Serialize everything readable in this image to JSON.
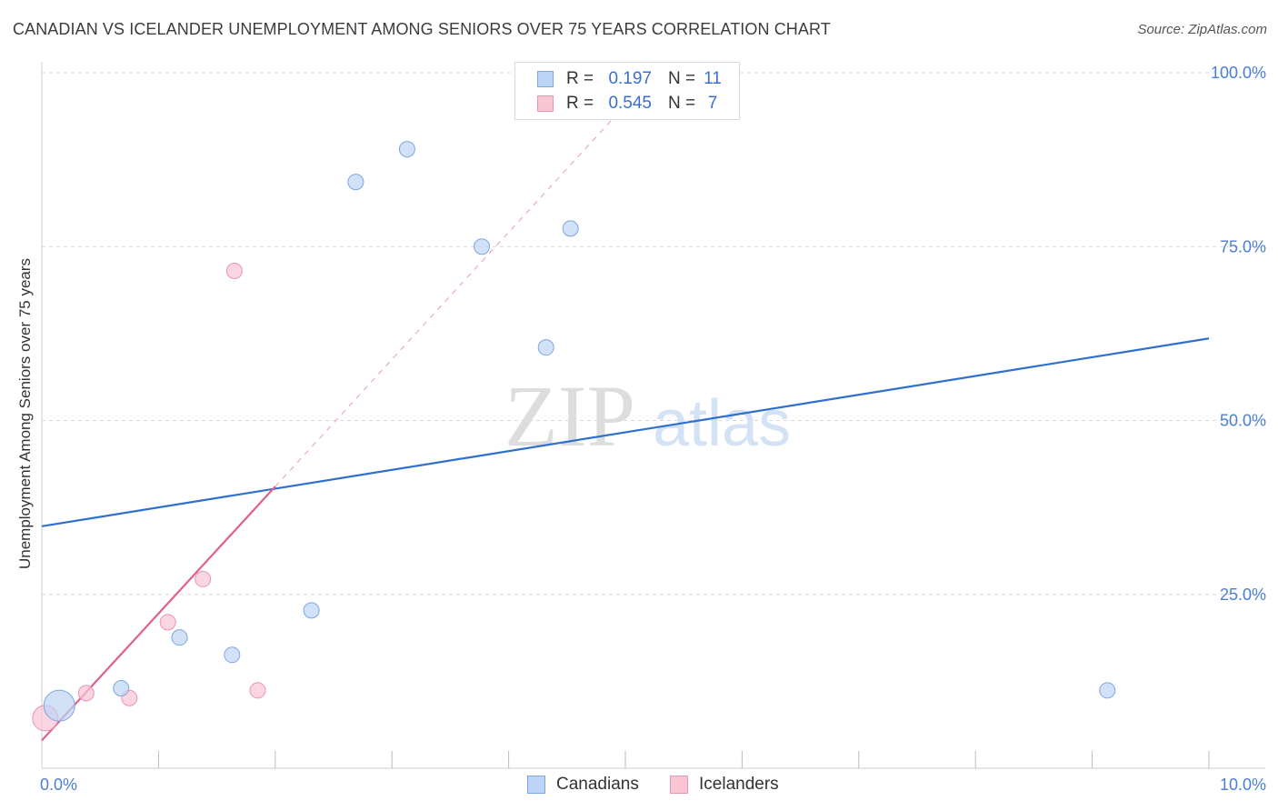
{
  "title": "CANADIAN VS ICELANDER UNEMPLOYMENT AMONG SENIORS OVER 75 YEARS CORRELATION CHART",
  "source": "Source: ZipAtlas.com",
  "watermark": {
    "zip": "ZIP",
    "atlas": "atlas"
  },
  "legend": {
    "rows": [
      {
        "r_label": "R =",
        "r_value": "0.197",
        "n_label": "N =",
        "n_value": "11"
      },
      {
        "r_label": "R =",
        "r_value": "0.545",
        "n_label": "N =",
        "n_value": "7"
      }
    ]
  },
  "bottom_legend": {
    "canadians": "Canadians",
    "icelanders": "Icelanders"
  },
  "colors": {
    "blue_fill": "#bcd4f5",
    "blue_stroke": "#7ea6e0",
    "blue_line": "#2f6fce",
    "pink_fill": "#f9c5d5",
    "pink_stroke": "#e895ae",
    "pink_line": "#e0608a",
    "tick_text": "#4a7fd6",
    "grid": "#d9d9d9"
  },
  "chart_data": {
    "type": "scatter",
    "title": "CANADIAN VS ICELANDER UNEMPLOYMENT AMONG SENIORS OVER 75 YEARS CORRELATION CHART",
    "xlabel": "",
    "ylabel": "Unemployment Among Seniors over 75 years",
    "xlim": [
      0,
      10
    ],
    "ylim": [
      0,
      100
    ],
    "x_tick_labels": [
      "0.0%",
      "10.0%"
    ],
    "y_ticks": [
      25,
      50,
      75,
      100
    ],
    "y_tick_labels": [
      "25.0%",
      "50.0%",
      "75.0%",
      "100.0%"
    ],
    "series": [
      {
        "name": "Canadians",
        "points": [
          {
            "x": 0.15,
            "y": 9.0,
            "size": "large"
          },
          {
            "x": 0.68,
            "y": 11.5,
            "size": "normal"
          },
          {
            "x": 1.18,
            "y": 18.8,
            "size": "normal"
          },
          {
            "x": 1.63,
            "y": 16.3,
            "size": "normal"
          },
          {
            "x": 2.31,
            "y": 22.7,
            "size": "normal"
          },
          {
            "x": 2.69,
            "y": 84.3,
            "size": "normal"
          },
          {
            "x": 3.13,
            "y": 89.0,
            "size": "normal"
          },
          {
            "x": 3.77,
            "y": 75.0,
            "size": "normal"
          },
          {
            "x": 4.32,
            "y": 60.5,
            "size": "normal"
          },
          {
            "x": 4.53,
            "y": 77.6,
            "size": "normal"
          },
          {
            "x": 9.13,
            "y": 11.2,
            "size": "normal"
          }
        ],
        "trend": {
          "x0": 0,
          "y0": 34.8,
          "x1": 10,
          "y1": 61.8
        }
      },
      {
        "name": "Icelanders",
        "points": [
          {
            "x": 0.03,
            "y": 7.2,
            "size": "large"
          },
          {
            "x": 0.38,
            "y": 10.8,
            "size": "normal"
          },
          {
            "x": 0.75,
            "y": 10.1,
            "size": "normal"
          },
          {
            "x": 1.08,
            "y": 21.0,
            "size": "normal"
          },
          {
            "x": 1.38,
            "y": 27.2,
            "size": "normal"
          },
          {
            "x": 1.65,
            "y": 71.5,
            "size": "normal"
          },
          {
            "x": 1.85,
            "y": 11.2,
            "size": "normal"
          }
        ],
        "trend": {
          "x0": 0,
          "y0": 4.0,
          "x1": 2.0,
          "y1": 40.5
        },
        "trend_dashed": {
          "x0": 2.0,
          "y0": 40.5,
          "x1": 5.2,
          "y1": 99.0
        }
      }
    ]
  }
}
